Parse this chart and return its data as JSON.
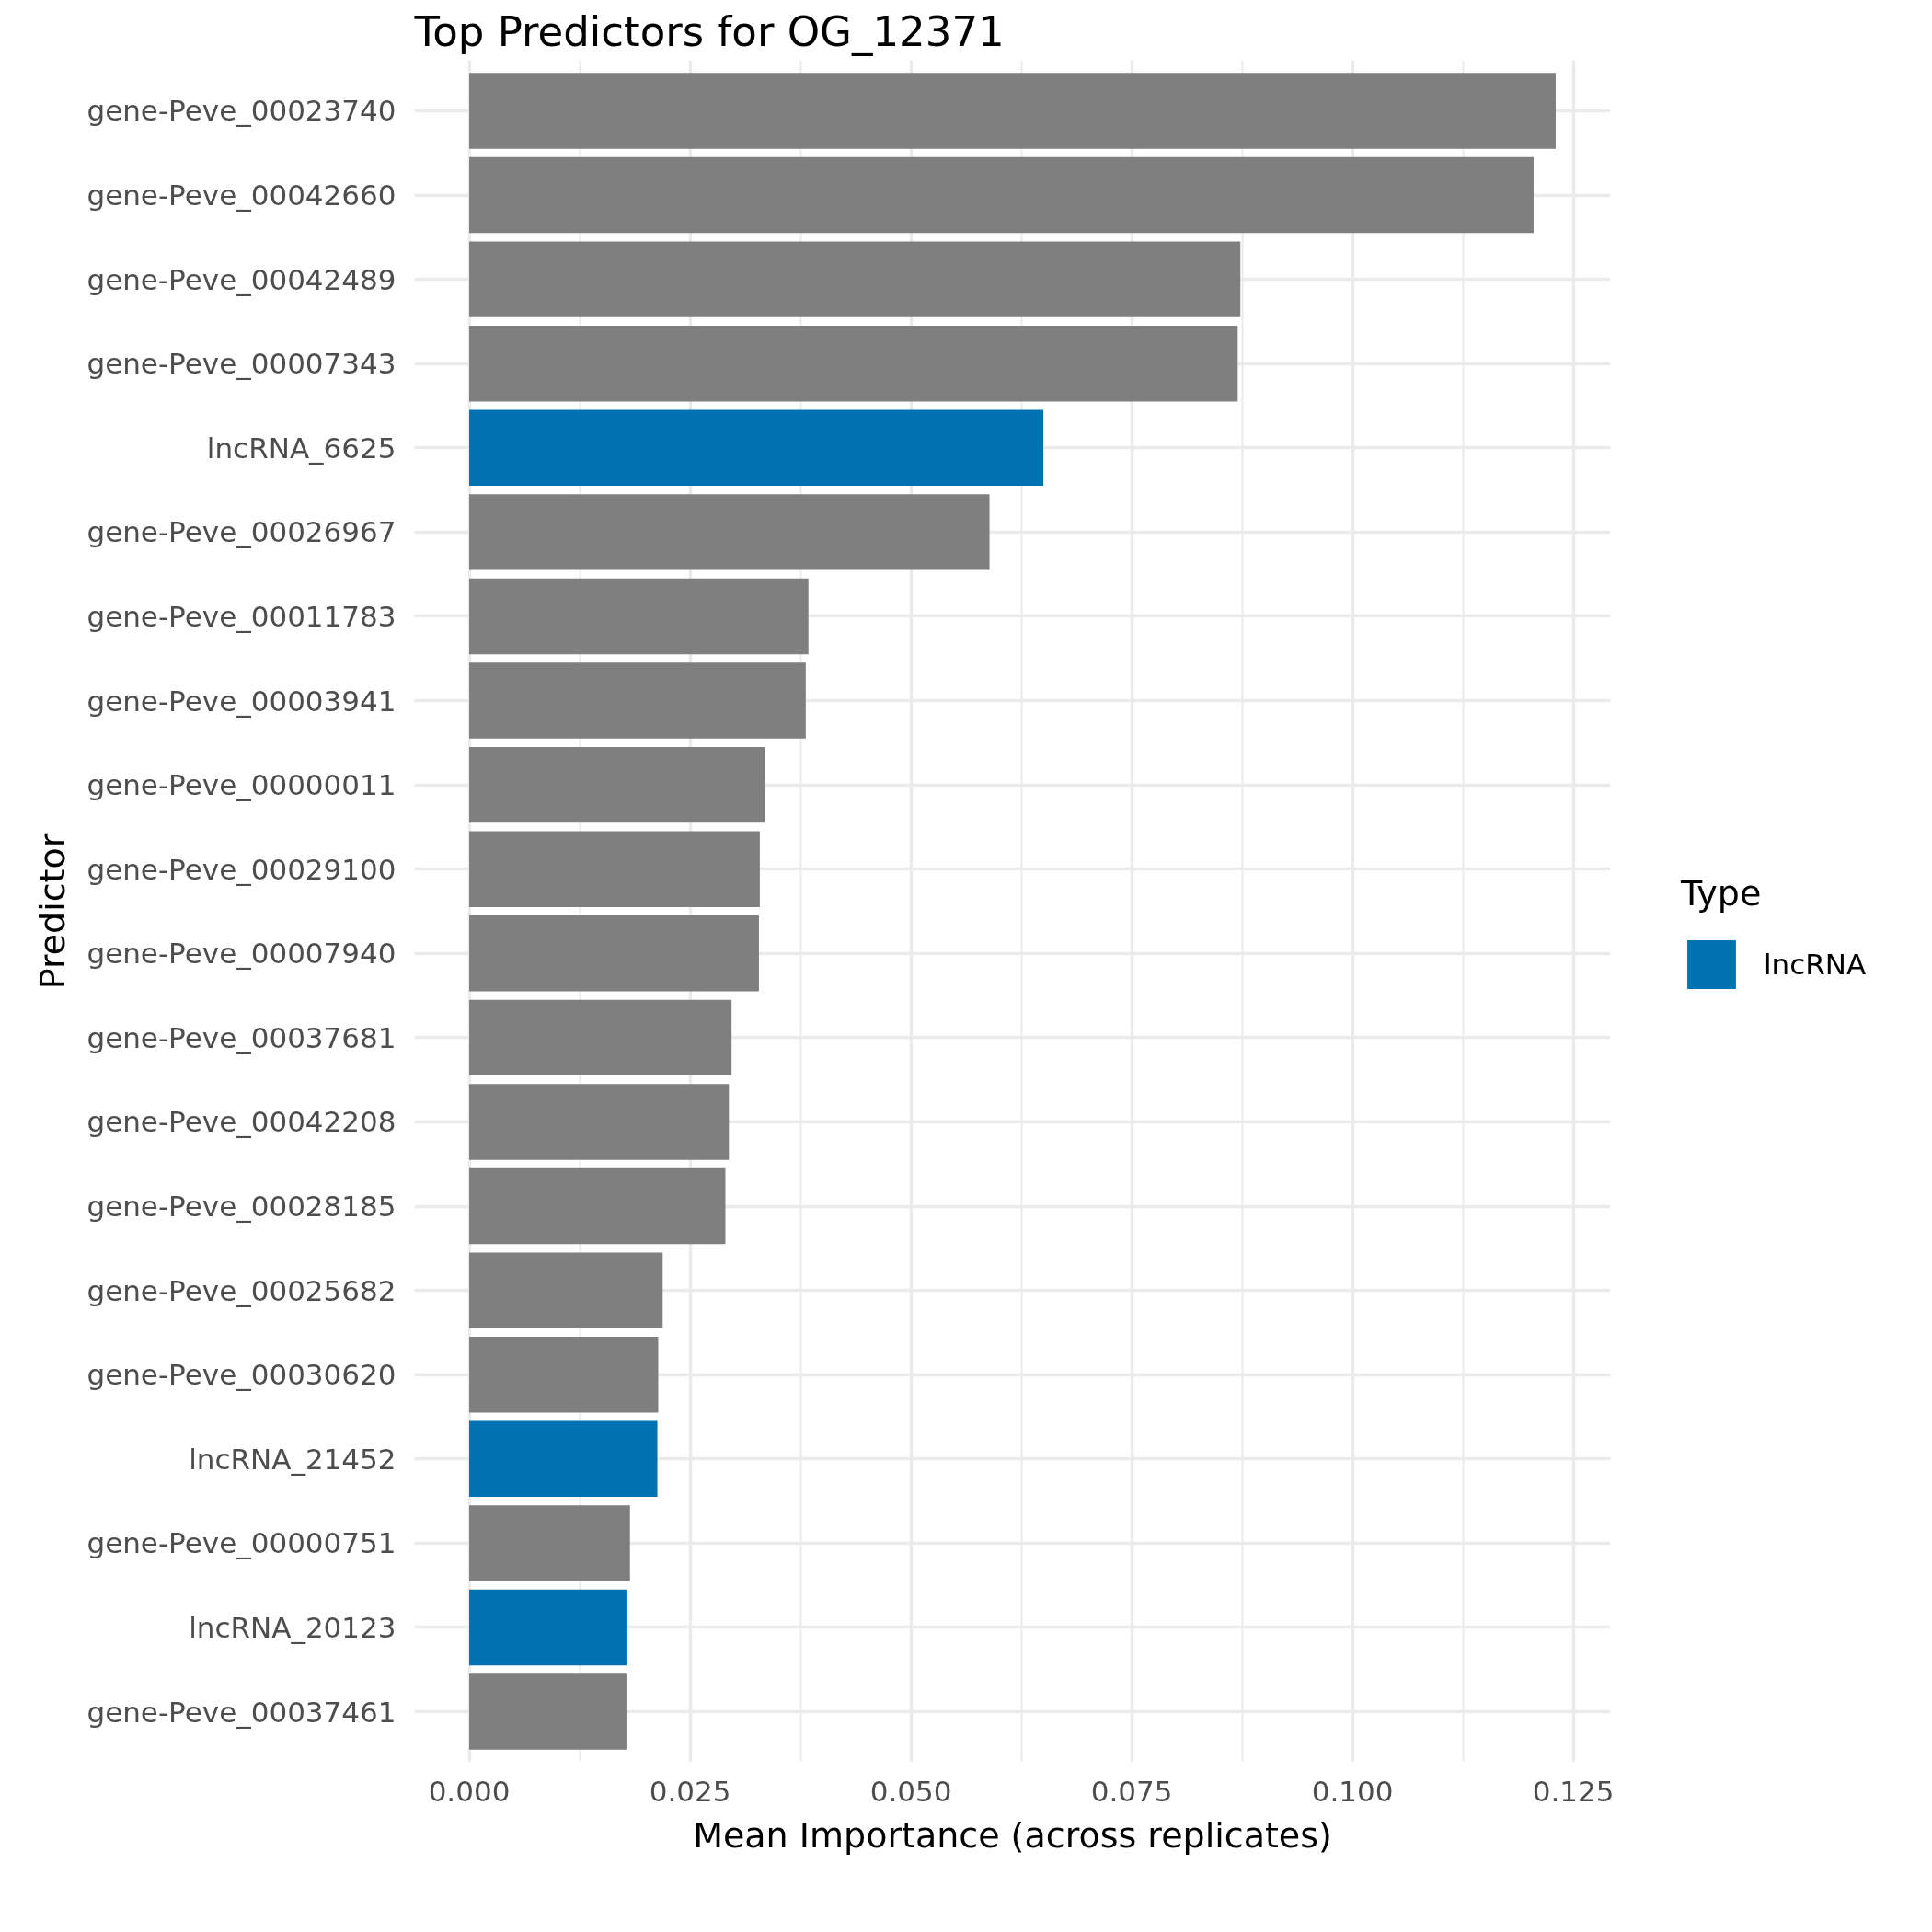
{
  "chart_data": {
    "type": "bar",
    "orientation": "horizontal",
    "stacked": true,
    "title": "Top Predictors for OG_12371",
    "xlabel": "Mean Importance (across replicates)",
    "ylabel": "Predictor",
    "legend_title": "Type",
    "categories": [
      "gene-Peve_00023740",
      "gene-Peve_00042660",
      "gene-Peve_00042489",
      "gene-Peve_00007343",
      "lncRNA_6625",
      "gene-Peve_00026967",
      "gene-Peve_00011783",
      "gene-Peve_00003941",
      "gene-Peve_00000011",
      "gene-Peve_00029100",
      "gene-Peve_00007940",
      "gene-Peve_00037681",
      "gene-Peve_00042208",
      "gene-Peve_00028185",
      "gene-Peve_00025682",
      "gene-Peve_00030620",
      "lncRNA_21452",
      "gene-Peve_00000751",
      "lncRNA_20123",
      "gene-Peve_00037461"
    ],
    "series": [
      {
        "color": "#7f7f7f",
        "values": [
          0.123,
          0.1205,
          0.0873,
          0.087,
          null,
          0.0589,
          0.0384,
          0.0381,
          0.0335,
          0.0329,
          0.0328,
          0.0297,
          0.0294,
          0.029,
          0.0219,
          0.0214,
          null,
          0.0182,
          null,
          0.0178
        ]
      },
      {
        "name": "lncRNA",
        "color": "#0072b2",
        "values": [
          null,
          null,
          null,
          null,
          0.065,
          null,
          null,
          null,
          null,
          null,
          null,
          null,
          null,
          null,
          null,
          null,
          0.0213,
          null,
          0.0178,
          null
        ]
      }
    ],
    "xlim": [
      -0.0062,
      0.1292
    ],
    "xticks": [
      {
        "value": 0,
        "label": "0.000"
      },
      0.025,
      {
        "value": 0.05,
        "label": "0.050"
      },
      0.075,
      {
        "value": 0.1,
        "label": "0.100"
      },
      0.125
    ],
    "grid": true,
    "legend": "right"
  }
}
